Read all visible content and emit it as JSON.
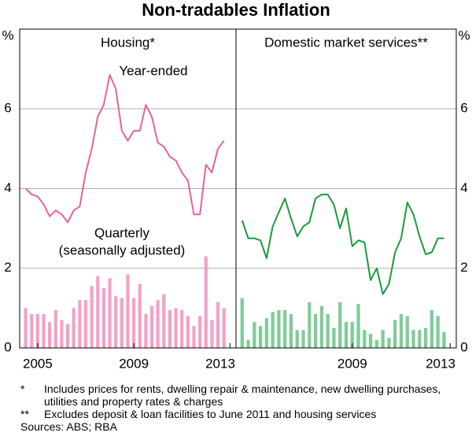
{
  "title": "Non-tradables Inflation",
  "chart_data": [
    {
      "type": "combo",
      "title": "Housing*",
      "y_label": "%",
      "y_axis_side": "left",
      "annotations": [
        "Year-ended",
        "Quarterly",
        "(seasonally adjusted)"
      ],
      "x": [
        2004.5,
        2004.75,
        2005,
        2005.25,
        2005.5,
        2005.75,
        2006,
        2006.25,
        2006.5,
        2006.75,
        2007,
        2007.25,
        2007.5,
        2007.75,
        2008,
        2008.25,
        2008.5,
        2008.75,
        2009,
        2009.25,
        2009.5,
        2009.75,
        2010,
        2010.25,
        2010.5,
        2010.75,
        2011,
        2011.25,
        2011.5,
        2011.75,
        2012,
        2012.25,
        2012.5,
        2012.75
      ],
      "xlim": [
        2004.25,
        2013.25
      ],
      "xticks": [
        2005,
        2009,
        2013
      ],
      "ylim": [
        0,
        8
      ],
      "yticks": [
        0,
        2,
        4,
        6
      ],
      "grid": true,
      "series": [
        {
          "name": "Year-ended",
          "type": "line",
          "color": "#e8609f",
          "values": [
            4.0,
            3.85,
            3.8,
            3.6,
            3.3,
            3.45,
            3.35,
            3.15,
            3.45,
            3.55,
            4.4,
            5.0,
            5.8,
            6.1,
            6.85,
            6.5,
            5.45,
            5.2,
            5.45,
            5.45,
            6.1,
            5.8,
            5.15,
            5.05,
            4.8,
            4.7,
            4.4,
            4.2,
            3.35,
            3.35,
            4.6,
            4.4,
            5.0,
            5.2
          ]
        },
        {
          "name": "Quarterly",
          "type": "bar",
          "color": "#f4a0c9",
          "values": [
            1.0,
            0.85,
            0.85,
            0.85,
            0.65,
            0.95,
            0.7,
            0.6,
            1.0,
            1.2,
            1.2,
            1.55,
            1.8,
            1.5,
            1.75,
            1.3,
            1.25,
            1.85,
            1.25,
            1.6,
            0.85,
            1.05,
            1.2,
            1.35,
            0.95,
            1.0,
            0.95,
            0.8,
            0.55,
            0.8,
            2.3,
            0.7,
            1.15,
            1.0
          ]
        }
      ]
    },
    {
      "type": "combo",
      "title": "Domestic market services**",
      "y_label": "%",
      "y_axis_side": "right",
      "x": [
        2004.5,
        2004.75,
        2005,
        2005.25,
        2005.5,
        2005.75,
        2006,
        2006.25,
        2006.5,
        2006.75,
        2007,
        2007.25,
        2007.5,
        2007.75,
        2008,
        2008.25,
        2008.5,
        2008.75,
        2009,
        2009.25,
        2009.5,
        2009.75,
        2010,
        2010.25,
        2010.5,
        2010.75,
        2011,
        2011.25,
        2011.5,
        2011.75,
        2012,
        2012.25,
        2012.5,
        2012.75
      ],
      "xlim": [
        2004.25,
        2013.25
      ],
      "xticks": [
        2009,
        2013
      ],
      "ylim": [
        0,
        8
      ],
      "yticks": [
        0,
        2,
        4,
        6
      ],
      "grid": true,
      "series": [
        {
          "name": "Year-ended",
          "type": "line",
          "color": "#1a9a3a",
          "values": [
            3.2,
            2.75,
            2.75,
            2.7,
            2.25,
            3.05,
            3.4,
            3.75,
            3.25,
            2.8,
            3.05,
            3.15,
            3.75,
            3.85,
            3.85,
            3.6,
            3.0,
            3.5,
            2.55,
            2.7,
            2.65,
            1.7,
            2.0,
            1.35,
            1.6,
            2.4,
            2.75,
            3.65,
            3.35,
            2.8,
            2.35,
            2.4,
            2.75,
            2.75
          ]
        },
        {
          "name": "Quarterly",
          "type": "bar",
          "color": "#80cc98",
          "values": [
            1.25,
            0.2,
            0.65,
            0.55,
            0.75,
            0.9,
            0.95,
            0.95,
            0.85,
            0.45,
            0.45,
            1.15,
            0.85,
            1.05,
            0.85,
            0.5,
            1.15,
            0.65,
            0.65,
            1.1,
            0.45,
            0.35,
            0.2,
            0.45,
            0.25,
            0.7,
            0.85,
            0.8,
            0.45,
            0.45,
            0.5,
            0.95,
            0.8,
            0.4
          ]
        }
      ]
    }
  ],
  "notes": [
    {
      "mark": "*",
      "text": "Includes prices for rents, dwelling repair & maintenance, new dwelling purchases, utilities and property rates & charges"
    },
    {
      "mark": "**",
      "text": "Excludes deposit & loan facilities to June 2011 and housing services"
    }
  ],
  "sources": "Sources: ABS; RBA"
}
